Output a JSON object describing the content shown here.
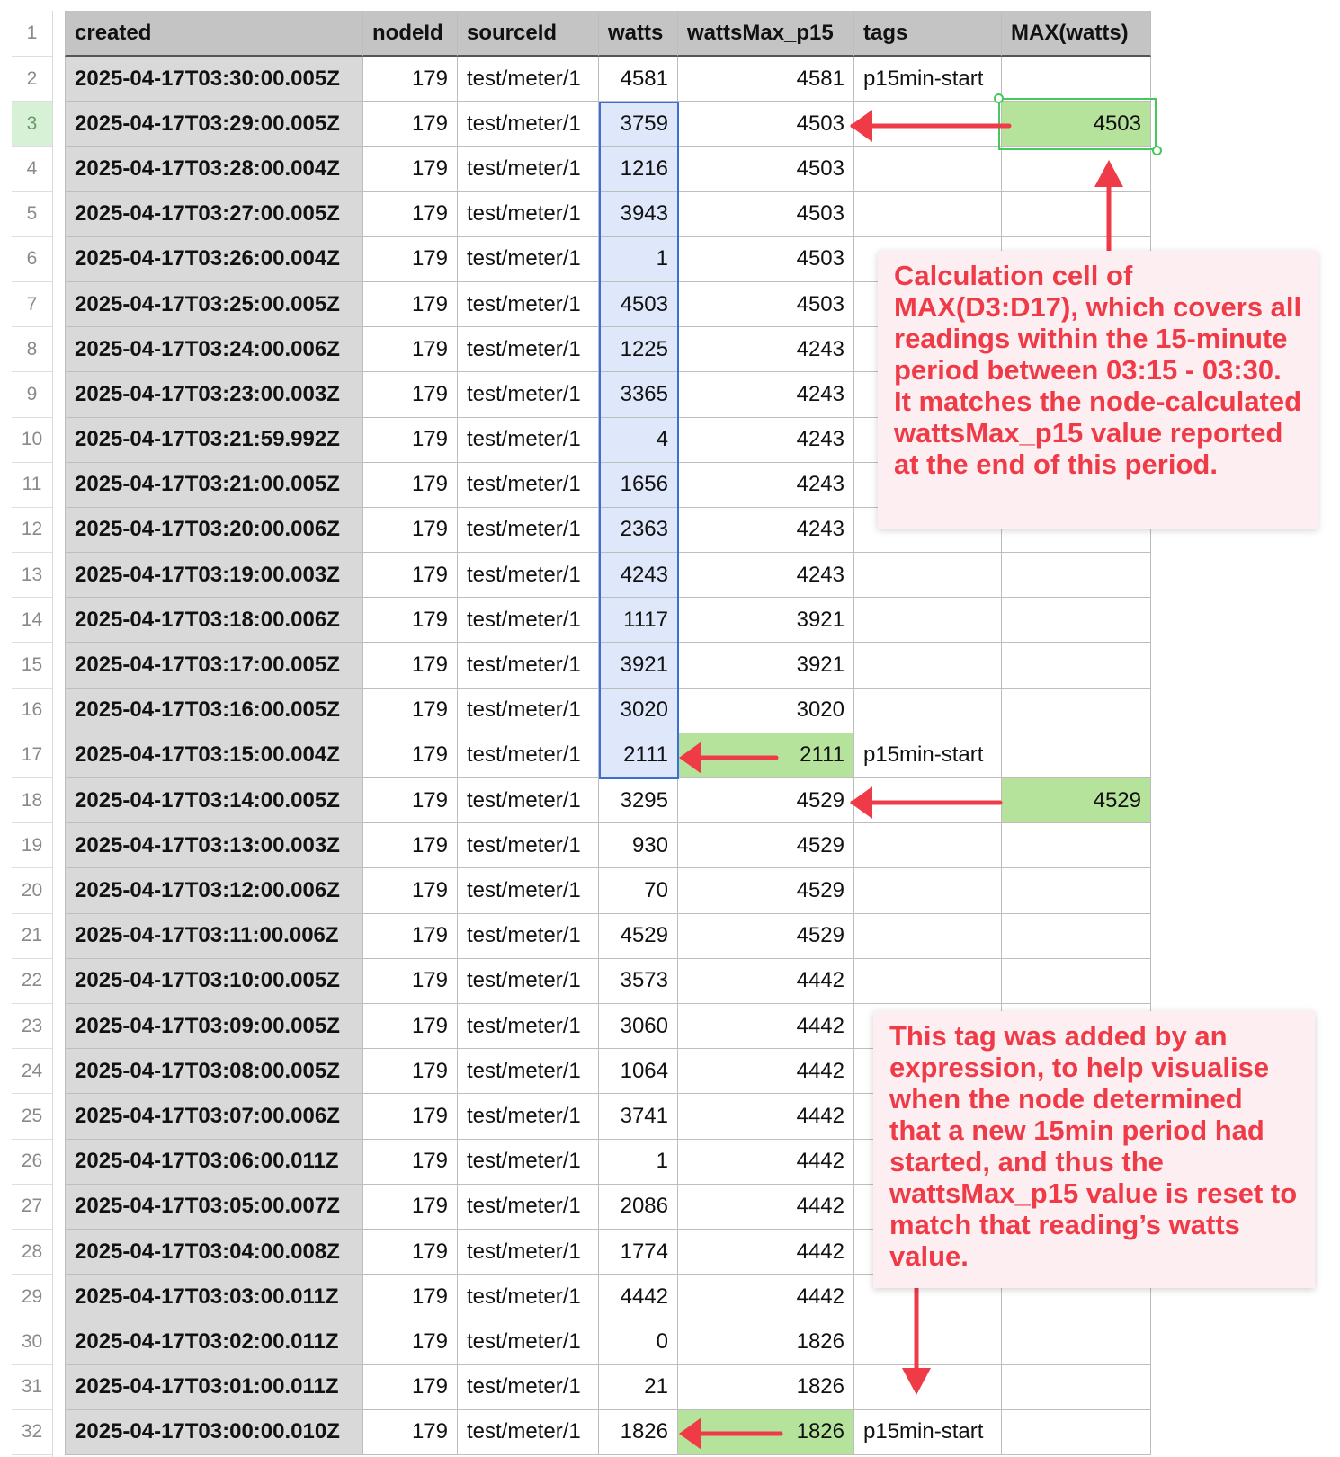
{
  "columns": [
    "created",
    "nodeId",
    "sourceId",
    "watts",
    "wattsMax_p15",
    "tags",
    "MAX(watts)"
  ],
  "rows": [
    {
      "created": "2025-04-17T03:30:00.005Z",
      "nodeId": "179",
      "sourceId": "test/meter/1",
      "watts": "4581",
      "wattsMax_p15": "4581",
      "tags": "p15min-start",
      "max": ""
    },
    {
      "created": "2025-04-17T03:29:00.005Z",
      "nodeId": "179",
      "sourceId": "test/meter/1",
      "watts": "3759",
      "wattsMax_p15": "4503",
      "tags": "",
      "max": "4503"
    },
    {
      "created": "2025-04-17T03:28:00.004Z",
      "nodeId": "179",
      "sourceId": "test/meter/1",
      "watts": "1216",
      "wattsMax_p15": "4503",
      "tags": "",
      "max": ""
    },
    {
      "created": "2025-04-17T03:27:00.005Z",
      "nodeId": "179",
      "sourceId": "test/meter/1",
      "watts": "3943",
      "wattsMax_p15": "4503",
      "tags": "",
      "max": ""
    },
    {
      "created": "2025-04-17T03:26:00.004Z",
      "nodeId": "179",
      "sourceId": "test/meter/1",
      "watts": "1",
      "wattsMax_p15": "4503",
      "tags": "",
      "max": ""
    },
    {
      "created": "2025-04-17T03:25:00.005Z",
      "nodeId": "179",
      "sourceId": "test/meter/1",
      "watts": "4503",
      "wattsMax_p15": "4503",
      "tags": "",
      "max": ""
    },
    {
      "created": "2025-04-17T03:24:00.006Z",
      "nodeId": "179",
      "sourceId": "test/meter/1",
      "watts": "1225",
      "wattsMax_p15": "4243",
      "tags": "",
      "max": ""
    },
    {
      "created": "2025-04-17T03:23:00.003Z",
      "nodeId": "179",
      "sourceId": "test/meter/1",
      "watts": "3365",
      "wattsMax_p15": "4243",
      "tags": "",
      "max": ""
    },
    {
      "created": "2025-04-17T03:21:59.992Z",
      "nodeId": "179",
      "sourceId": "test/meter/1",
      "watts": "4",
      "wattsMax_p15": "4243",
      "tags": "",
      "max": ""
    },
    {
      "created": "2025-04-17T03:21:00.005Z",
      "nodeId": "179",
      "sourceId": "test/meter/1",
      "watts": "1656",
      "wattsMax_p15": "4243",
      "tags": "",
      "max": ""
    },
    {
      "created": "2025-04-17T03:20:00.006Z",
      "nodeId": "179",
      "sourceId": "test/meter/1",
      "watts": "2363",
      "wattsMax_p15": "4243",
      "tags": "",
      "max": ""
    },
    {
      "created": "2025-04-17T03:19:00.003Z",
      "nodeId": "179",
      "sourceId": "test/meter/1",
      "watts": "4243",
      "wattsMax_p15": "4243",
      "tags": "",
      "max": ""
    },
    {
      "created": "2025-04-17T03:18:00.006Z",
      "nodeId": "179",
      "sourceId": "test/meter/1",
      "watts": "1117",
      "wattsMax_p15": "3921",
      "tags": "",
      "max": ""
    },
    {
      "created": "2025-04-17T03:17:00.005Z",
      "nodeId": "179",
      "sourceId": "test/meter/1",
      "watts": "3921",
      "wattsMax_p15": "3921",
      "tags": "",
      "max": ""
    },
    {
      "created": "2025-04-17T03:16:00.005Z",
      "nodeId": "179",
      "sourceId": "test/meter/1",
      "watts": "3020",
      "wattsMax_p15": "3020",
      "tags": "",
      "max": ""
    },
    {
      "created": "2025-04-17T03:15:00.004Z",
      "nodeId": "179",
      "sourceId": "test/meter/1",
      "watts": "2111",
      "wattsMax_p15": "2111",
      "tags": "p15min-start",
      "max": ""
    },
    {
      "created": "2025-04-17T03:14:00.005Z",
      "nodeId": "179",
      "sourceId": "test/meter/1",
      "watts": "3295",
      "wattsMax_p15": "4529",
      "tags": "",
      "max": "4529"
    },
    {
      "created": "2025-04-17T03:13:00.003Z",
      "nodeId": "179",
      "sourceId": "test/meter/1",
      "watts": "930",
      "wattsMax_p15": "4529",
      "tags": "",
      "max": ""
    },
    {
      "created": "2025-04-17T03:12:00.006Z",
      "nodeId": "179",
      "sourceId": "test/meter/1",
      "watts": "70",
      "wattsMax_p15": "4529",
      "tags": "",
      "max": ""
    },
    {
      "created": "2025-04-17T03:11:00.006Z",
      "nodeId": "179",
      "sourceId": "test/meter/1",
      "watts": "4529",
      "wattsMax_p15": "4529",
      "tags": "",
      "max": ""
    },
    {
      "created": "2025-04-17T03:10:00.005Z",
      "nodeId": "179",
      "sourceId": "test/meter/1",
      "watts": "3573",
      "wattsMax_p15": "4442",
      "tags": "",
      "max": ""
    },
    {
      "created": "2025-04-17T03:09:00.005Z",
      "nodeId": "179",
      "sourceId": "test/meter/1",
      "watts": "3060",
      "wattsMax_p15": "4442",
      "tags": "",
      "max": ""
    },
    {
      "created": "2025-04-17T03:08:00.005Z",
      "nodeId": "179",
      "sourceId": "test/meter/1",
      "watts": "1064",
      "wattsMax_p15": "4442",
      "tags": "",
      "max": ""
    },
    {
      "created": "2025-04-17T03:07:00.006Z",
      "nodeId": "179",
      "sourceId": "test/meter/1",
      "watts": "3741",
      "wattsMax_p15": "4442",
      "tags": "",
      "max": ""
    },
    {
      "created": "2025-04-17T03:06:00.011Z",
      "nodeId": "179",
      "sourceId": "test/meter/1",
      "watts": "1",
      "wattsMax_p15": "4442",
      "tags": "",
      "max": ""
    },
    {
      "created": "2025-04-17T03:05:00.007Z",
      "nodeId": "179",
      "sourceId": "test/meter/1",
      "watts": "2086",
      "wattsMax_p15": "4442",
      "tags": "",
      "max": ""
    },
    {
      "created": "2025-04-17T03:04:00.008Z",
      "nodeId": "179",
      "sourceId": "test/meter/1",
      "watts": "1774",
      "wattsMax_p15": "4442",
      "tags": "",
      "max": ""
    },
    {
      "created": "2025-04-17T03:03:00.011Z",
      "nodeId": "179",
      "sourceId": "test/meter/1",
      "watts": "4442",
      "wattsMax_p15": "4442",
      "tags": "",
      "max": ""
    },
    {
      "created": "2025-04-17T03:02:00.011Z",
      "nodeId": "179",
      "sourceId": "test/meter/1",
      "watts": "0",
      "wattsMax_p15": "1826",
      "tags": "",
      "max": ""
    },
    {
      "created": "2025-04-17T03:01:00.011Z",
      "nodeId": "179",
      "sourceId": "test/meter/1",
      "watts": "21",
      "wattsMax_p15": "1826",
      "tags": "",
      "max": ""
    },
    {
      "created": "2025-04-17T03:00:00.010Z",
      "nodeId": "179",
      "sourceId": "test/meter/1",
      "watts": "1826",
      "wattsMax_p15": "1826",
      "tags": "p15min-start",
      "max": ""
    }
  ],
  "row_numbers": [
    "1",
    "2",
    "3",
    "4",
    "5",
    "6",
    "7",
    "8",
    "9",
    "10",
    "11",
    "12",
    "13",
    "14",
    "15",
    "16",
    "17",
    "18",
    "19",
    "20",
    "21",
    "22",
    "23",
    "24",
    "25",
    "26",
    "27",
    "28",
    "29",
    "30",
    "31",
    "32"
  ],
  "selected_row_number": "3",
  "selection": {
    "watts_range_from_row": "3",
    "watts_range_to_row": "17",
    "active_cell": "G3"
  },
  "highlighted_cells": [
    "G3",
    "E17",
    "G18",
    "E32"
  ],
  "annotations": {
    "note1": "Calculation cell of MAX(D3:D17), which covers all readings within the 15-minute period between 03:15 - 03:30. It matches the node-calculated wattsMax_p15 value reported at the end of this period.",
    "note2": "This tag was added by an expression, to help visualise when the node determined that a new 15min period had started, and thus the wattsMax_p15 value is reset to match that reading’s watts value."
  },
  "colors": {
    "header_bg": "#c4c4c4",
    "created_bg": "#d9d9d9",
    "highlight_green": "#b6e39c",
    "range_blue_bg": "#dfe7fa",
    "range_blue_border": "#3a6fd8",
    "annotation_red": "#ef3b47",
    "note_bg": "#fdeff1"
  }
}
